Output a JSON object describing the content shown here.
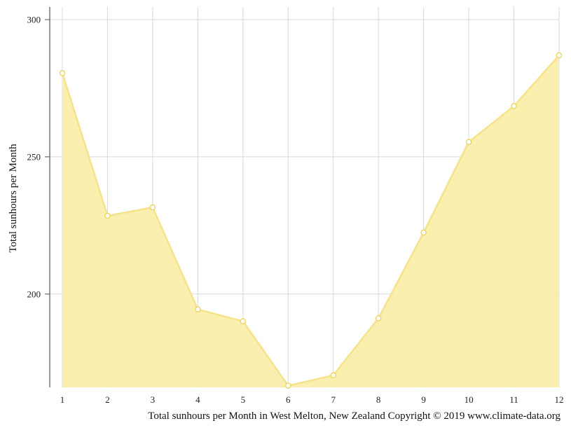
{
  "chart_data": {
    "type": "area",
    "x": [
      1,
      2,
      3,
      4,
      5,
      6,
      7,
      8,
      9,
      10,
      11,
      12
    ],
    "series": [
      {
        "values": [
          280.5,
          228.5,
          231.6,
          194.4,
          190.1,
          166.6,
          170.4,
          191.2,
          222.4,
          255.4,
          268.5,
          287.0
        ]
      }
    ],
    "ylabel": "Total sunhours per Month",
    "xlabel": "",
    "ylim": [
      166,
      305
    ],
    "yticks": [
      200,
      250,
      300
    ],
    "xticks": [
      1,
      2,
      3,
      4,
      5,
      6,
      7,
      8,
      9,
      10,
      11,
      12
    ],
    "caption": "Total sunhours per Month in West Melton, New Zealand Copyright © 2019 www.climate-data.org",
    "grid": true,
    "colors": {
      "fill": "#faeeab",
      "line": "#f7e28c",
      "point_fill": "#ffffff",
      "point_stroke": "#ecd25a",
      "grid": "#d9d9d9",
      "axis": "#555555"
    }
  }
}
